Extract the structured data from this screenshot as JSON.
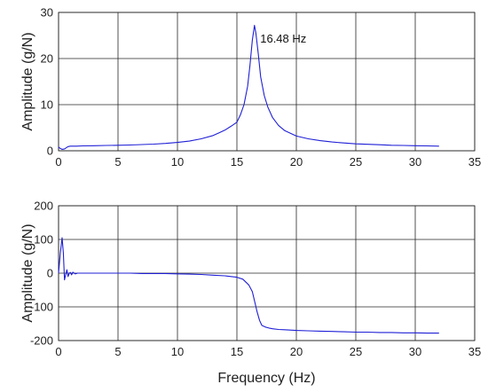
{
  "chart_data": [
    {
      "type": "line",
      "ylabel": "Amplitude (g/N)",
      "xlabel": "",
      "xlim": [
        0,
        35
      ],
      "ylim": [
        0,
        30
      ],
      "xticks": [
        0,
        5,
        10,
        15,
        20,
        25,
        30,
        35
      ],
      "yticks": [
        0,
        10,
        20,
        30
      ],
      "grid": true,
      "annotation": {
        "text": "16.48 Hz",
        "x": 18.9,
        "y": 23.5
      },
      "series": [
        {
          "color": "#1f1fd6",
          "x": [
            0,
            0.15,
            0.3,
            0.5,
            0.8,
            1,
            1.5,
            2,
            3,
            4,
            5,
            6,
            7,
            8,
            9,
            10,
            11,
            12,
            13,
            13.5,
            14,
            14.5,
            15,
            15.3,
            15.6,
            15.9,
            16.1,
            16.3,
            16.48,
            16.6,
            16.8,
            17,
            17.3,
            17.6,
            18,
            18.5,
            19,
            20,
            21,
            22,
            23,
            24,
            25,
            26,
            27,
            28,
            29,
            30,
            31,
            32
          ],
          "values": [
            0.8,
            0.5,
            0.3,
            0.4,
            0.9,
            1.0,
            1.0,
            1.05,
            1.1,
            1.15,
            1.2,
            1.25,
            1.35,
            1.45,
            1.6,
            1.8,
            2.1,
            2.6,
            3.3,
            3.9,
            4.5,
            5.3,
            6.2,
            7.8,
            10,
            14,
            18.5,
            24,
            27.2,
            25.5,
            21,
            16,
            12,
            9.5,
            7.2,
            5.5,
            4.4,
            3.2,
            2.6,
            2.2,
            1.9,
            1.7,
            1.5,
            1.4,
            1.3,
            1.2,
            1.15,
            1.1,
            1.05,
            1.0
          ]
        }
      ]
    },
    {
      "type": "line",
      "ylabel": "Amplitude (g/N)",
      "xlabel": "Frequency (Hz)",
      "xlim": [
        0,
        35
      ],
      "ylim": [
        -200,
        200
      ],
      "xticks": [
        0,
        5,
        10,
        15,
        20,
        25,
        30,
        35
      ],
      "yticks": [
        -200,
        -100,
        0,
        100,
        200
      ],
      "grid": true,
      "series": [
        {
          "color": "#1f1fd6",
          "x": [
            0,
            0.15,
            0.3,
            0.4,
            0.5,
            0.6,
            0.7,
            0.8,
            0.9,
            1.0,
            1.1,
            1.2,
            1.4,
            1.6,
            2,
            3,
            4,
            5,
            6,
            7,
            8,
            9,
            10,
            11,
            12,
            13,
            14,
            14.5,
            15,
            15.5,
            16,
            16.3,
            16.5,
            16.7,
            16.9,
            17.1,
            17.4,
            17.7,
            18,
            18.5,
            19,
            20,
            21,
            22,
            23,
            24,
            25,
            26,
            27,
            28,
            29,
            30,
            31,
            32
          ],
          "values": [
            0,
            60,
            105,
            60,
            -20,
            -5,
            10,
            -10,
            0,
            2,
            -5,
            3,
            -2,
            0,
            0,
            0,
            0,
            0,
            0,
            -1,
            -1,
            -1,
            -2,
            -3,
            -4,
            -6,
            -8,
            -10,
            -12,
            -18,
            -35,
            -55,
            -85,
            -115,
            -140,
            -155,
            -160,
            -163,
            -165,
            -167,
            -168,
            -170,
            -171,
            -172,
            -173,
            -174,
            -175,
            -175,
            -176,
            -176,
            -177,
            -177,
            -178,
            -178
          ]
        }
      ]
    }
  ]
}
